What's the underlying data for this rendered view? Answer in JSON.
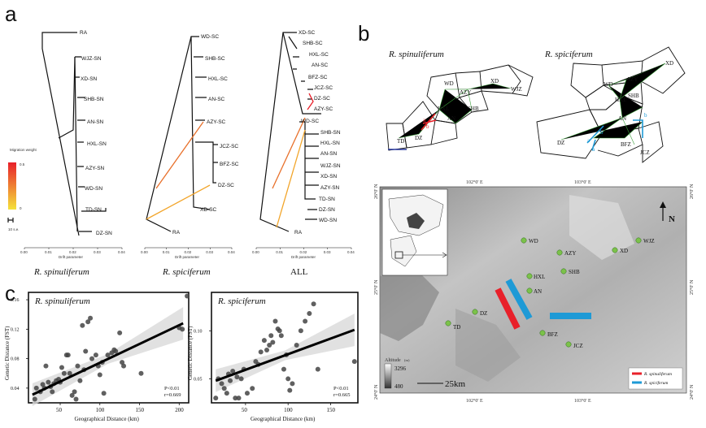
{
  "panels": {
    "a": "a",
    "b": "b",
    "c": "c"
  },
  "trees": [
    {
      "caption": "R. spinuliferum",
      "xlabel": "Drift parameter",
      "ticks": [
        "0.00",
        "0.01",
        "0.02",
        "0.03",
        "0.04"
      ],
      "root": "RA",
      "leaves": [
        "WJZ-SN",
        "XD-SN",
        "SHB-SN",
        "AN-SN",
        "HXL-SN",
        "AZY-SN",
        "WD-SN",
        "TD-SN",
        "DZ-SN"
      ]
    },
    {
      "caption": "R. spiciferum",
      "xlabel": "Drift parameter",
      "ticks": [
        "0.00",
        "0.01",
        "0.02",
        "0.03",
        "0.04"
      ],
      "root": "RA",
      "leaves": [
        "WD-SC",
        "SHB-SC",
        "HXL-SC",
        "AN-SC",
        "AZY-SC",
        "JCZ-SC",
        "BFZ-SC",
        "DZ-SC",
        "XD-SC"
      ]
    },
    {
      "caption": "ALL",
      "xlabel": "Drift parameter",
      "ticks": [
        "0.00",
        "0.01",
        "0.02",
        "0.03",
        "0.04"
      ],
      "root": "RA",
      "leaves": [
        "XD-SC",
        "SHB-SC",
        "HXL-SC",
        "AN-SC",
        "BFZ-SC",
        "JCZ-SC",
        "DZ-SC",
        "AZY-SC",
        "WD-SC",
        "SHB-SN",
        "HXL-SN",
        "AN-SN",
        "WJZ-SN",
        "XD-SN",
        "AZY-SN",
        "TD-SN",
        "DZ-SN",
        "WD-SN"
      ]
    }
  ],
  "legend_a": {
    "title": "Migration weight",
    "max": "0.5",
    "min": "0",
    "se": "10 s.e."
  },
  "networks": [
    {
      "title": "R. spinuliferum",
      "sites": [
        "WD",
        "AZY",
        "XD",
        "WJZ",
        "HXL",
        "SHB",
        "AN",
        "TD",
        "DZ"
      ],
      "arrow_labels": [
        "a",
        "b"
      ]
    },
    {
      "title": "R. spiciferum",
      "sites": [
        "XD",
        "WD",
        "AZY",
        "HXL",
        "SHB",
        "AN",
        "DZ",
        "BFZ",
        "JCZ"
      ],
      "arrow_labels": [
        "a",
        "a",
        "b",
        "b"
      ]
    }
  ],
  "map": {
    "lon_labels": [
      "102°0' E",
      "103°0' E"
    ],
    "lat_labels": [
      "26°0' N",
      "25°0' N",
      "24°0' N"
    ],
    "sites": [
      "WD",
      "AZY",
      "SHB",
      "XD",
      "WJZ",
      "HXL",
      "AN",
      "DZ",
      "TD",
      "BFZ",
      "JCZ"
    ],
    "north": "N",
    "scale": "25km",
    "altitude_title": "Altitude",
    "altitude_unit": "(m)",
    "altitude_max": "3296",
    "altitude_min": "480",
    "legend": [
      "R. spinuliferum",
      "R. spiciferum"
    ],
    "colors": {
      "spinuliferum": "#e8202a",
      "spiciferum": "#1e9ad6",
      "site": "#7cc24a"
    }
  },
  "chart_data": [
    {
      "type": "scatter",
      "title": "R. spinuliferum",
      "xlabel": "Geographical Distance (km)",
      "ylabel": "Genetic Distance (FST)",
      "xticks": [
        "50",
        "100",
        "150",
        "200"
      ],
      "yticks": [
        "0.04",
        "0.08",
        "0.12",
        "0.16"
      ],
      "xlim": [
        10,
        212
      ],
      "ylim": [
        0.02,
        0.17
      ],
      "stats": [
        "P<0.01",
        "r=0.669"
      ],
      "fit": {
        "x": [
          15,
          205
        ],
        "y": [
          0.031,
          0.128
        ]
      },
      "points": [
        [
          18,
          0.025
        ],
        [
          20,
          0.04
        ],
        [
          25,
          0.035
        ],
        [
          28,
          0.045
        ],
        [
          30,
          0.04
        ],
        [
          32,
          0.07
        ],
        [
          35,
          0.048
        ],
        [
          38,
          0.042
        ],
        [
          40,
          0.035
        ],
        [
          42,
          0.046
        ],
        [
          45,
          0.05
        ],
        [
          48,
          0.052
        ],
        [
          50,
          0.048
        ],
        [
          52,
          0.068
        ],
        [
          55,
          0.06
        ],
        [
          58,
          0.085
        ],
        [
          60,
          0.085
        ],
        [
          62,
          0.06
        ],
        [
          65,
          0.03
        ],
        [
          68,
          0.035
        ],
        [
          70,
          0.025
        ],
        [
          72,
          0.07
        ],
        [
          75,
          0.05
        ],
        [
          78,
          0.125
        ],
        [
          80,
          0.065
        ],
        [
          82,
          0.09
        ],
        [
          85,
          0.13
        ],
        [
          88,
          0.135
        ],
        [
          90,
          0.08
        ],
        [
          95,
          0.085
        ],
        [
          98,
          0.07
        ],
        [
          100,
          0.058
        ],
        [
          103,
          0.075
        ],
        [
          105,
          0.033
        ],
        [
          110,
          0.085
        ],
        [
          115,
          0.088
        ],
        [
          118,
          0.092
        ],
        [
          120,
          0.09
        ],
        [
          125,
          0.115
        ],
        [
          128,
          0.075
        ],
        [
          130,
          0.07
        ],
        [
          152,
          0.06
        ],
        [
          200,
          0.122
        ],
        [
          204,
          0.12
        ],
        [
          210,
          0.165
        ]
      ]
    },
    {
      "type": "scatter",
      "title": "R. spiciferum",
      "xlabel": "Geographical Distance (km)",
      "ylabel": "Genetic Distance (FST)",
      "xticks": [
        "50",
        "100",
        "150"
      ],
      "yticks": [
        "0.05",
        "0.10"
      ],
      "xlim": [
        10,
        182
      ],
      "ylim": [
        0.025,
        0.14
      ],
      "stats": [
        "P<0.01",
        "r=0.665"
      ],
      "fit": {
        "x": [
          15,
          178
        ],
        "y": [
          0.048,
          0.101
        ]
      },
      "points": [
        [
          15,
          0.03
        ],
        [
          18,
          0.05
        ],
        [
          22,
          0.045
        ],
        [
          25,
          0.04
        ],
        [
          28,
          0.035
        ],
        [
          30,
          0.055
        ],
        [
          32,
          0.048
        ],
        [
          35,
          0.058
        ],
        [
          38,
          0.03
        ],
        [
          40,
          0.052
        ],
        [
          42,
          0.03
        ],
        [
          45,
          0.05
        ],
        [
          48,
          0.06
        ],
        [
          52,
          0.035
        ],
        [
          58,
          0.04
        ],
        [
          62,
          0.068
        ],
        [
          65,
          0.065
        ],
        [
          68,
          0.078
        ],
        [
          72,
          0.09
        ],
        [
          75,
          0.08
        ],
        [
          78,
          0.085
        ],
        [
          80,
          0.095
        ],
        [
          82,
          0.088
        ],
        [
          85,
          0.11
        ],
        [
          88,
          0.102
        ],
        [
          90,
          0.1
        ],
        [
          92,
          0.095
        ],
        [
          95,
          0.06
        ],
        [
          98,
          0.075
        ],
        [
          100,
          0.05
        ],
        [
          102,
          0.038
        ],
        [
          105,
          0.045
        ],
        [
          110,
          0.085
        ],
        [
          115,
          0.1
        ],
        [
          120,
          0.11
        ],
        [
          125,
          0.118
        ],
        [
          130,
          0.128
        ],
        [
          135,
          0.06
        ],
        [
          178,
          0.068
        ]
      ]
    }
  ]
}
